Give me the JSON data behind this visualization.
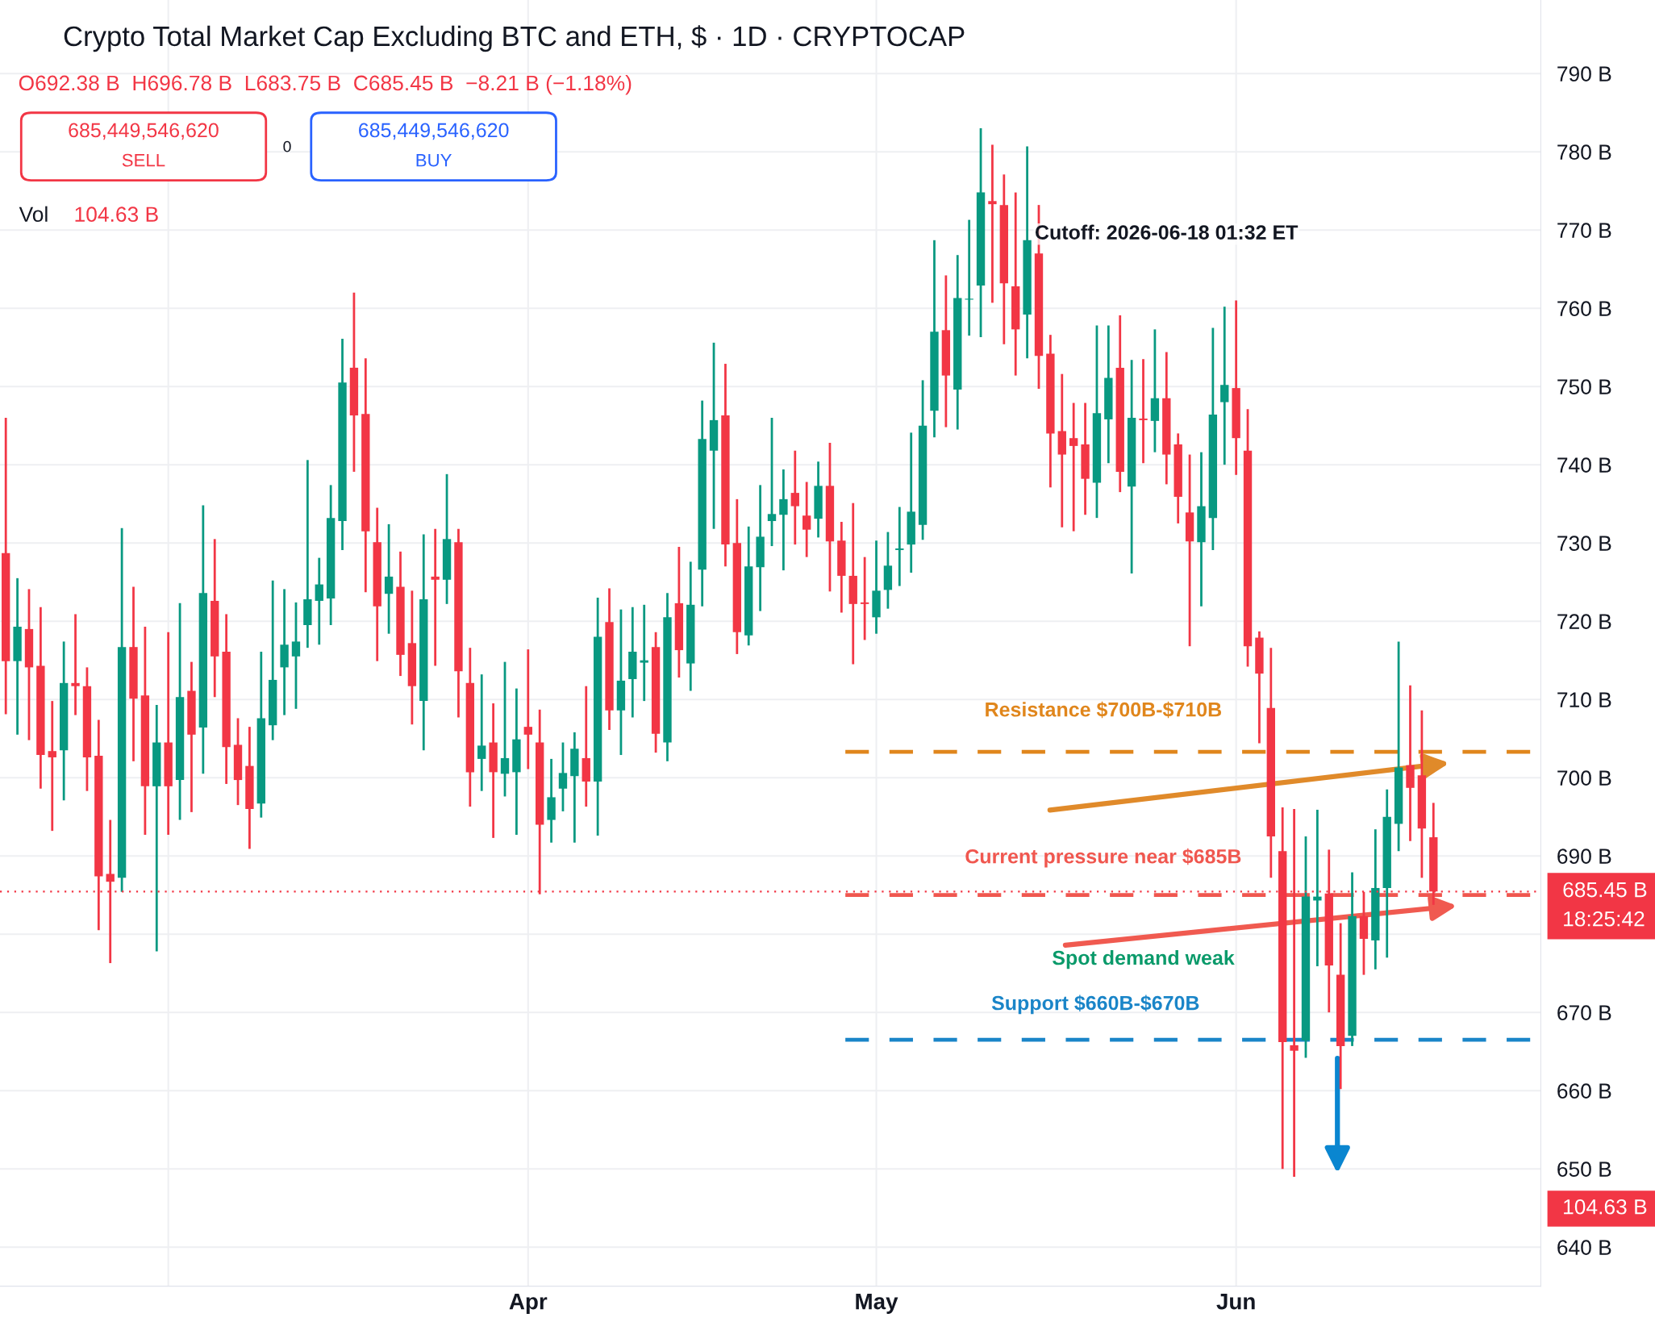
{
  "chart_data": {
    "type": "candlestick",
    "title": "Crypto Total Market Cap Excluding BTC and ETH, $ · 1D · CRYPTOCAP",
    "subtitle": "O692.38 B  H696.78 B  L683.75 B  C685.45 B  −8.21 B (−1.18%)",
    "x": [
      "2026-02-15",
      "2026-02-16",
      "2026-02-17",
      "2026-02-18",
      "2026-02-19",
      "2026-02-20",
      "2026-02-21",
      "2026-02-22",
      "2026-02-23",
      "2026-02-24",
      "2026-02-25",
      "2026-02-26",
      "2026-02-27",
      "2026-02-28",
      "2026-03-01",
      "2026-03-02",
      "2026-03-03",
      "2026-03-04",
      "2026-03-05",
      "2026-03-06",
      "2026-03-07",
      "2026-03-08",
      "2026-03-09",
      "2026-03-10",
      "2026-03-11",
      "2026-03-12",
      "2026-03-13",
      "2026-03-14",
      "2026-03-15",
      "2026-03-16",
      "2026-03-17",
      "2026-03-18",
      "2026-03-19",
      "2026-03-20",
      "2026-03-21",
      "2026-03-22",
      "2026-03-23",
      "2026-03-24",
      "2026-03-25",
      "2026-03-26",
      "2026-03-27",
      "2026-03-28",
      "2026-03-29",
      "2026-03-30",
      "2026-03-31",
      "2026-04-01",
      "2026-04-02",
      "2026-04-03",
      "2026-04-04",
      "2026-04-05",
      "2026-04-06",
      "2026-04-07",
      "2026-04-08",
      "2026-04-09",
      "2026-04-10",
      "2026-04-11",
      "2026-04-12",
      "2026-04-13",
      "2026-04-14",
      "2026-04-15",
      "2026-04-16",
      "2026-04-17",
      "2026-04-18",
      "2026-04-19",
      "2026-04-20",
      "2026-04-21",
      "2026-04-22",
      "2026-04-23",
      "2026-04-24",
      "2026-04-25",
      "2026-04-26",
      "2026-04-27",
      "2026-04-28",
      "2026-04-29",
      "2026-04-30",
      "2026-05-01",
      "2026-05-02",
      "2026-05-03",
      "2026-05-04",
      "2026-05-05",
      "2026-05-06",
      "2026-05-07",
      "2026-05-08",
      "2026-05-09",
      "2026-05-10",
      "2026-05-11",
      "2026-05-12",
      "2026-05-13",
      "2026-05-14",
      "2026-05-15",
      "2026-05-16",
      "2026-05-17",
      "2026-05-18",
      "2026-05-19",
      "2026-05-20",
      "2026-05-21",
      "2026-05-22",
      "2026-05-23",
      "2026-05-24",
      "2026-05-25",
      "2026-05-26",
      "2026-05-27",
      "2026-05-28",
      "2026-05-29",
      "2026-05-30",
      "2026-05-31",
      "2026-06-01",
      "2026-06-02",
      "2026-06-03",
      "2026-06-04",
      "2026-06-05",
      "2026-06-06",
      "2026-06-07",
      "2026-06-08",
      "2026-06-09",
      "2026-06-10",
      "2026-06-11",
      "2026-06-12",
      "2026-06-13",
      "2026-06-14",
      "2026-06-15",
      "2026-06-16",
      "2026-06-17",
      "2026-06-18"
    ],
    "ohlc": [
      [
        728.7,
        746.0,
        708.1,
        714.9
      ],
      [
        714.9,
        725.5,
        705.5,
        719.3
      ],
      [
        719.0,
        724.1,
        704.8,
        714.1
      ],
      [
        714.3,
        721.8,
        698.6,
        702.9
      ],
      [
        703.4,
        709.8,
        693.2,
        702.6
      ],
      [
        703.5,
        717.4,
        697.1,
        712.1
      ],
      [
        712.1,
        720.9,
        708.0,
        711.7
      ],
      [
        711.7,
        714.1,
        698.3,
        702.6
      ],
      [
        702.8,
        707.4,
        680.5,
        687.4
      ],
      [
        687.7,
        694.6,
        676.3,
        686.7
      ],
      [
        687.2,
        731.9,
        685.4,
        716.7
      ],
      [
        716.7,
        724.4,
        702.1,
        710.1
      ],
      [
        710.5,
        719.3,
        692.7,
        698.9
      ],
      [
        698.9,
        709.3,
        677.8,
        704.5
      ],
      [
        704.5,
        718.6,
        692.7,
        698.9
      ],
      [
        699.7,
        722.3,
        694.6,
        710.3
      ],
      [
        711.1,
        714.8,
        695.6,
        705.5
      ],
      [
        706.4,
        734.8,
        700.5,
        723.6
      ],
      [
        722.6,
        730.5,
        710.3,
        715.5
      ],
      [
        716.1,
        720.9,
        699.2,
        703.9
      ],
      [
        704.2,
        707.6,
        696.5,
        699.7
      ],
      [
        701.5,
        706.5,
        690.9,
        696.0
      ],
      [
        696.7,
        716.1,
        694.9,
        707.6
      ],
      [
        706.7,
        725.2,
        704.8,
        712.5
      ],
      [
        714.1,
        724.1,
        708.0,
        717.0
      ],
      [
        715.5,
        722.4,
        708.8,
        717.4
      ],
      [
        719.5,
        740.6,
        716.6,
        722.8
      ],
      [
        722.6,
        728.1,
        717.0,
        724.7
      ],
      [
        722.9,
        737.4,
        719.5,
        733.2
      ],
      [
        732.8,
        756.1,
        729.1,
        750.5
      ],
      [
        752.4,
        762.0,
        739.1,
        746.3
      ],
      [
        746.5,
        753.6,
        723.7,
        731.5
      ],
      [
        730.1,
        734.5,
        714.9,
        721.9
      ],
      [
        723.5,
        732.4,
        718.4,
        725.7
      ],
      [
        724.4,
        728.9,
        713.0,
        715.7
      ],
      [
        717.2,
        723.9,
        706.8,
        711.7
      ],
      [
        709.8,
        731.1,
        703.5,
        722.8
      ],
      [
        725.7,
        731.8,
        714.3,
        725.3
      ],
      [
        725.3,
        738.8,
        722.2,
        730.5
      ],
      [
        730.1,
        731.8,
        707.7,
        713.6
      ],
      [
        712.1,
        716.6,
        696.3,
        700.7
      ],
      [
        702.4,
        713.2,
        698.3,
        704.1
      ],
      [
        704.5,
        709.5,
        692.3,
        700.7
      ],
      [
        700.5,
        714.8,
        697.6,
        702.5
      ],
      [
        700.7,
        711.4,
        692.7,
        704.9
      ],
      [
        706.5,
        716.4,
        701.1,
        705.5
      ],
      [
        704.5,
        708.7,
        685.1,
        694.0
      ],
      [
        694.6,
        702.4,
        691.7,
        697.5
      ],
      [
        698.6,
        704.5,
        695.7,
        700.6
      ],
      [
        700.2,
        705.8,
        691.7,
        703.7
      ],
      [
        702.5,
        711.7,
        696.3,
        699.5
      ],
      [
        699.5,
        723.0,
        692.6,
        718.0
      ],
      [
        719.9,
        724.2,
        706.1,
        708.6
      ],
      [
        708.6,
        721.5,
        702.9,
        712.4
      ],
      [
        712.6,
        721.8,
        707.7,
        716.1
      ],
      [
        714.7,
        722.1,
        709.8,
        715.0
      ],
      [
        716.7,
        718.6,
        703.2,
        705.6
      ],
      [
        704.5,
        723.6,
        702.1,
        720.5
      ],
      [
        722.3,
        729.5,
        712.8,
        716.3
      ],
      [
        714.6,
        727.6,
        711.1,
        722.1
      ],
      [
        726.6,
        748.2,
        721.9,
        743.3
      ],
      [
        741.8,
        755.6,
        731.8,
        745.7
      ],
      [
        746.3,
        752.9,
        727.0,
        729.8
      ],
      [
        730.0,
        735.6,
        715.8,
        718.6
      ],
      [
        718.2,
        732.1,
        716.9,
        727.0
      ],
      [
        726.9,
        737.4,
        721.3,
        730.8
      ],
      [
        732.8,
        746.0,
        729.6,
        733.7
      ],
      [
        733.6,
        739.4,
        726.5,
        735.6
      ],
      [
        736.4,
        741.8,
        729.8,
        734.7
      ],
      [
        733.5,
        737.8,
        728.2,
        731.7
      ],
      [
        733.1,
        740.4,
        730.7,
        737.3
      ],
      [
        737.3,
        742.8,
        723.8,
        730.2
      ],
      [
        730.3,
        732.7,
        721.1,
        725.8
      ],
      [
        725.8,
        735.1,
        714.5,
        722.2
      ],
      [
        722.4,
        728.2,
        717.6,
        722.2
      ],
      [
        720.5,
        730.3,
        718.4,
        723.9
      ],
      [
        724.0,
        731.4,
        721.6,
        727.1
      ],
      [
        729.1,
        734.6,
        724.5,
        729.3
      ],
      [
        729.8,
        744.1,
        726.2,
        734.0
      ],
      [
        732.3,
        750.8,
        730.4,
        745.0
      ],
      [
        746.9,
        768.7,
        743.5,
        757.0
      ],
      [
        757.2,
        764.2,
        744.8,
        751.4
      ],
      [
        749.6,
        766.8,
        744.5,
        761.3
      ],
      [
        761.1,
        771.3,
        756.5,
        761.2
      ],
      [
        762.9,
        783.0,
        756.3,
        774.8
      ],
      [
        773.7,
        780.9,
        760.7,
        773.3
      ],
      [
        773.2,
        777.1,
        755.4,
        763.2
      ],
      [
        762.8,
        774.8,
        751.4,
        757.3
      ],
      [
        759.2,
        780.7,
        753.6,
        768.7
      ],
      [
        767.0,
        773.2,
        749.7,
        753.9
      ],
      [
        754.2,
        756.6,
        737.1,
        744.0
      ],
      [
        744.3,
        751.6,
        732.0,
        741.3
      ],
      [
        743.4,
        747.9,
        731.5,
        742.4
      ],
      [
        742.6,
        747.9,
        733.6,
        738.2
      ],
      [
        737.7,
        757.8,
        733.2,
        746.6
      ],
      [
        745.8,
        757.8,
        740.2,
        751.1
      ],
      [
        752.4,
        759.1,
        736.5,
        739.1
      ],
      [
        737.2,
        753.4,
        726.1,
        746.0
      ],
      [
        745.9,
        753.5,
        740.2,
        745.7
      ],
      [
        745.6,
        757.3,
        741.6,
        748.5
      ],
      [
        748.5,
        754.4,
        737.5,
        741.3
      ],
      [
        742.6,
        744.0,
        732.5,
        735.9
      ],
      [
        733.9,
        741.3,
        716.8,
        730.2
      ],
      [
        730.1,
        741.6,
        721.9,
        734.7
      ],
      [
        733.2,
        757.5,
        729.1,
        746.4
      ],
      [
        748.0,
        760.2,
        740.0,
        750.2
      ],
      [
        749.8,
        761.0,
        738.7,
        743.4
      ],
      [
        741.8,
        747.1,
        714.2,
        716.8
      ],
      [
        717.9,
        718.7,
        704.4,
        713.3
      ],
      [
        708.9,
        716.6,
        687.2,
        692.5
      ],
      [
        690.6,
        696.2,
        650.0,
        666.2
      ],
      [
        665.8,
        696.0,
        649.0,
        665.1
      ],
      [
        666.4,
        692.5,
        664.2,
        684.8
      ],
      [
        684.3,
        695.9,
        675.9,
        684.8
      ],
      [
        685.2,
        690.8,
        670.0,
        676.0
      ],
      [
        674.8,
        681.4,
        660.2,
        665.7
      ],
      [
        667.0,
        687.9,
        665.7,
        682.3
      ],
      [
        682.3,
        685.4,
        674.8,
        679.4
      ],
      [
        679.2,
        693.4,
        675.5,
        685.9
      ],
      [
        685.9,
        698.5,
        677.0,
        695.0
      ],
      [
        694.1,
        717.4,
        690.6,
        701.3
      ],
      [
        701.6,
        711.8,
        691.9,
        698.7
      ],
      [
        700.3,
        708.6,
        687.2,
        693.5
      ],
      [
        692.38,
        696.78,
        683.75,
        685.45
      ]
    ],
    "colors": [
      "#f23645",
      "#089981",
      "#f23645",
      "#f23645",
      "#f23645",
      "#089981",
      "#f23645",
      "#f23645",
      "#f23645",
      "#f23645",
      "#089981",
      "#f23645",
      "#f23645",
      "#089981",
      "#f23645",
      "#089981",
      "#f23645",
      "#089981",
      "#f23645",
      "#f23645",
      "#f23645",
      "#f23645",
      "#089981",
      "#089981",
      "#089981",
      "#089981",
      "#089981",
      "#089981",
      "#089981",
      "#089981",
      "#f23645",
      "#f23645",
      "#f23645",
      "#089981",
      "#f23645",
      "#f23645",
      "#089981",
      "#f23645",
      "#089981",
      "#f23645",
      "#f23645",
      "#089981",
      "#f23645",
      "#089981",
      "#089981",
      "#f23645",
      "#f23645",
      "#089981",
      "#089981",
      "#089981",
      "#f23645",
      "#089981",
      "#f23645",
      "#089981",
      "#089981",
      "#089981",
      "#f23645",
      "#089981",
      "#f23645",
      "#089981",
      "#089981",
      "#089981",
      "#f23645",
      "#f23645",
      "#089981",
      "#089981",
      "#089981",
      "#089981",
      "#f23645",
      "#f23645",
      "#089981",
      "#f23645",
      "#f23645",
      "#f23645",
      "#f23645",
      "#089981",
      "#089981",
      "#089981",
      "#089981",
      "#089981",
      "#089981",
      "#f23645",
      "#089981",
      "#089981",
      "#089981",
      "#f23645",
      "#f23645",
      "#f23645",
      "#089981",
      "#f23645",
      "#f23645",
      "#f23645",
      "#f23645",
      "#f23645",
      "#089981",
      "#089981",
      "#f23645",
      "#089981",
      "#f23645",
      "#089981",
      "#f23645",
      "#f23645",
      "#f23645",
      "#089981",
      "#089981",
      "#089981",
      "#f23645",
      "#f23645",
      "#f23645",
      "#f23645",
      "#f23645",
      "#f23645",
      "#089981",
      "#089981",
      "#f23645",
      "#f23645",
      "#089981",
      "#f23645",
      "#089981",
      "#089981",
      "#089981",
      "#f23645",
      "#f23645",
      "#f23645"
    ],
    "series": [
      {
        "type": "line",
        "x": [
          "2026-04-28T08:00",
          "2026-06-26T08:00"
        ],
        "values": [
          703.3,
          703.3
        ],
        "color": "#e0861c",
        "line_style": "dashed"
      },
      {
        "type": "line",
        "x": [
          "2026-04-28T08:00",
          "2026-06-26T08:00"
        ],
        "values": [
          685.0,
          685.0
        ],
        "color": "#f0574f",
        "line_style": "dashed"
      },
      {
        "type": "line",
        "x": [
          "2026-04-28T08:00",
          "2026-06-26T08:00"
        ],
        "values": [
          666.5,
          666.5
        ],
        "color": "#1a85c8",
        "line_style": "dashed"
      }
    ],
    "ref_lines": [
      {
        "axis": "y",
        "value": 685.45,
        "label": "685.45 B",
        "color": "#f23645",
        "line_style": "dotted"
      }
    ],
    "xlim": [
      "2026-02-14T12:00",
      "2026-06-27T06:00"
    ],
    "xticks": [
      {
        "value": "2026-03-01",
        "label": null
      },
      {
        "value": "2026-04-01",
        "label": "Apr"
      },
      {
        "value": "2026-05-01",
        "label": "May"
      },
      {
        "value": "2026-06-01",
        "label": "Jun"
      }
    ],
    "ylim": [
      635,
      799.4
    ],
    "yticks": [
      {
        "value": 640,
        "label": "640 B"
      },
      {
        "value": 650,
        "label": "650 B"
      },
      {
        "value": 660,
        "label": "660 B"
      },
      {
        "value": 670,
        "label": "670 B"
      },
      {
        "value": 680,
        "label": null
      },
      {
        "value": 690,
        "label": "690 B"
      },
      {
        "value": 700,
        "label": "700 B"
      },
      {
        "value": 710,
        "label": "710 B"
      },
      {
        "value": 720,
        "label": "720 B"
      },
      {
        "value": 730,
        "label": "730 B"
      },
      {
        "value": 740,
        "label": "740 B"
      },
      {
        "value": 750,
        "label": "750 B"
      },
      {
        "value": 760,
        "label": "760 B"
      },
      {
        "value": 770,
        "label": "770 B"
      },
      {
        "value": 780,
        "label": "780 B"
      },
      {
        "value": 790,
        "label": "790 B"
      }
    ],
    "grid": true,
    "annotations": [
      "Cutoff: 2026-06-18 01:32 ET",
      "Resistance $700B-$710B",
      "Current pressure near $685B",
      "Spot demand weak",
      "Support $660B-$670B",
      "685,449,546,620",
      "SELL",
      "0",
      "685,449,546,620",
      "BUY",
      "Vol",
      "104.63 B",
      "104.63 B",
      "18:25:42"
    ]
  }
}
